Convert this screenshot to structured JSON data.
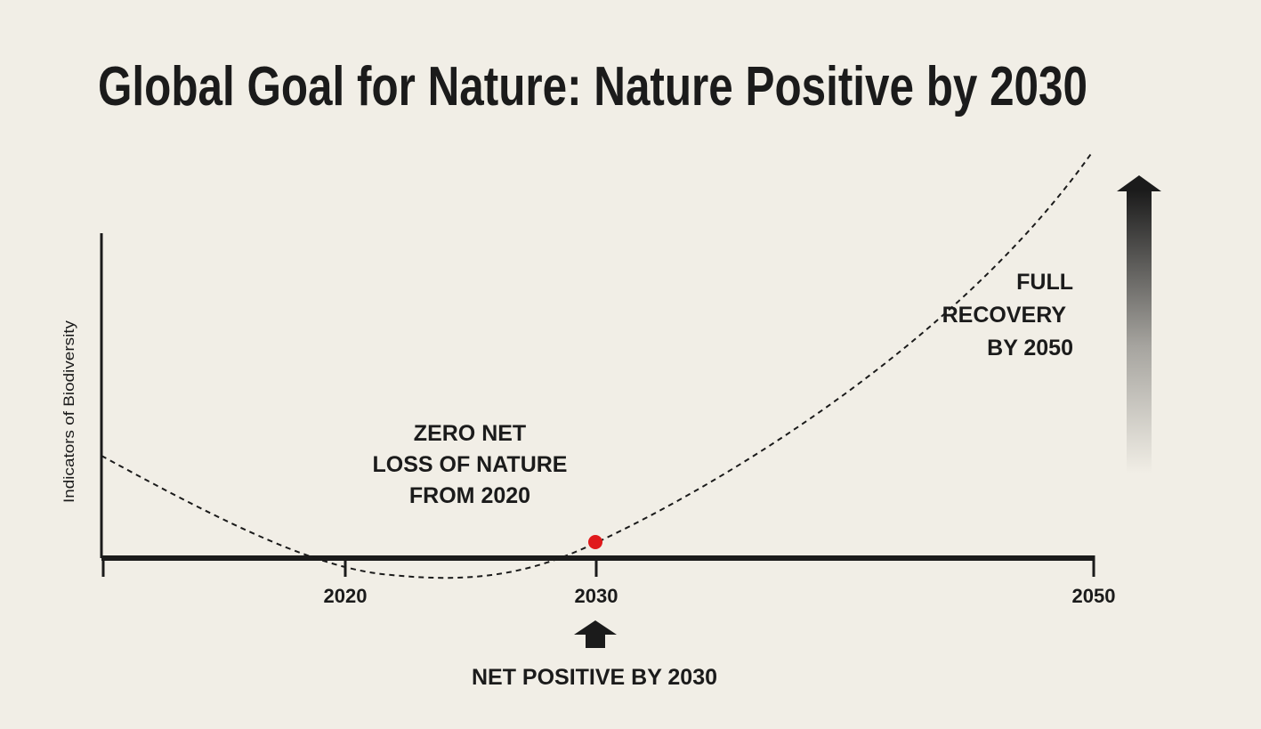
{
  "title": "Global Goal for Nature: Nature Positive by 2030",
  "y_axis_label": "Indicators of Biodiversity",
  "annotations": {
    "zero_net": [
      "ZERO NET",
      "LOSS OF NATURE",
      "FROM 2020"
    ],
    "full_recovery": [
      "FULL",
      "RECOVERY",
      "BY 2050"
    ],
    "net_positive": "NET POSITIVE BY 2030"
  },
  "colors": {
    "background": "#f1eee6",
    "ink": "#1b1b1b",
    "milestone_dot": "#e0191b"
  },
  "chart_data": {
    "type": "line",
    "title": "Global Goal for Nature: Nature Positive by 2030",
    "xlabel": "",
    "ylabel": "Indicators of Biodiversity",
    "x_ticks": [
      "2020",
      "2030",
      "2050"
    ],
    "xlim": [
      2010,
      2050
    ],
    "baseline_year": 2020,
    "milestone": {
      "year": 2030,
      "label": "NET POSITIVE BY 2030"
    },
    "trend": "dashed curve declining before 2020, bottoming between 2020 and 2030, crossing above the baseline at 2030 and rising steeply to full recovery by 2050",
    "grid": false
  }
}
